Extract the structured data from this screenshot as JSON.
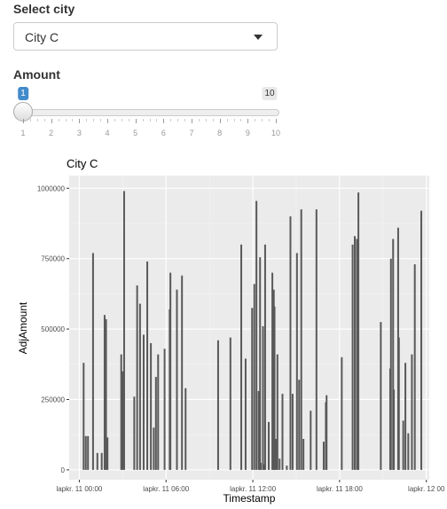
{
  "city_select": {
    "label": "Select city",
    "value": "City C"
  },
  "amount_slider": {
    "label": "Amount",
    "min": 1,
    "max": 10,
    "value": 1,
    "min_label": "1",
    "max_label": "10",
    "value_label": "1",
    "ticks": [
      "1",
      "2",
      "3",
      "4",
      "5",
      "6",
      "7",
      "8",
      "9",
      "10"
    ]
  },
  "chart_data": {
    "type": "bar",
    "title": "City C",
    "xlabel": "Timestamp",
    "ylabel": "AdjAmount",
    "xlim_hours": [
      -0.7,
      24.2
    ],
    "ylim": [
      -35000,
      1045000
    ],
    "y_ticks": [
      {
        "value": 0,
        "label": "0"
      },
      {
        "value": 250000,
        "label": "250000"
      },
      {
        "value": 500000,
        "label": "500000"
      },
      {
        "value": 750000,
        "label": "750000"
      },
      {
        "value": 1000000,
        "label": "1000000"
      }
    ],
    "x_ticks": [
      {
        "value": 0,
        "label": "lapkr. 11 00:00"
      },
      {
        "value": 6,
        "label": "lapkr. 11 06:00"
      },
      {
        "value": 12,
        "label": "lapkr. 11 12:00"
      },
      {
        "value": 18,
        "label": "lapkr. 11 18:00"
      },
      {
        "value": 24,
        "label": "lapkr. 12 00"
      }
    ],
    "grid": true,
    "bar_color": "#595959",
    "panel_color": "#ebebeb",
    "x_unit": "hours after lapkr. 11 00:00",
    "points": [
      [
        0.3,
        380000
      ],
      [
        0.45,
        120000
      ],
      [
        0.6,
        120000
      ],
      [
        0.95,
        770000
      ],
      [
        1.25,
        60000
      ],
      [
        1.55,
        60000
      ],
      [
        1.75,
        550000
      ],
      [
        1.85,
        535000
      ],
      [
        1.95,
        115000
      ],
      [
        2.9,
        410000
      ],
      [
        3.0,
        350000
      ],
      [
        3.1,
        990000
      ],
      [
        3.8,
        260000
      ],
      [
        4.0,
        655000
      ],
      [
        4.2,
        590000
      ],
      [
        4.45,
        480000
      ],
      [
        4.7,
        740000
      ],
      [
        4.95,
        450000
      ],
      [
        5.15,
        150000
      ],
      [
        5.3,
        330000
      ],
      [
        5.45,
        410000
      ],
      [
        5.9,
        430000
      ],
      [
        6.25,
        570000
      ],
      [
        6.3,
        700000
      ],
      [
        6.75,
        640000
      ],
      [
        7.1,
        690000
      ],
      [
        7.35,
        290000
      ],
      [
        9.6,
        460000
      ],
      [
        10.45,
        470000
      ],
      [
        11.2,
        800000
      ],
      [
        11.5,
        395000
      ],
      [
        11.95,
        575000
      ],
      [
        12.1,
        660000
      ],
      [
        12.25,
        955000
      ],
      [
        12.4,
        280000
      ],
      [
        12.5,
        755000
      ],
      [
        12.55,
        25000
      ],
      [
        12.7,
        510000
      ],
      [
        12.75,
        20000
      ],
      [
        12.85,
        800000
      ],
      [
        13.1,
        170000
      ],
      [
        13.35,
        700000
      ],
      [
        13.45,
        640000
      ],
      [
        13.5,
        580000
      ],
      [
        13.6,
        110000
      ],
      [
        13.7,
        410000
      ],
      [
        13.85,
        40000
      ],
      [
        14.05,
        270000
      ],
      [
        14.35,
        15000
      ],
      [
        14.6,
        900000
      ],
      [
        14.75,
        270000
      ],
      [
        15.05,
        770000
      ],
      [
        15.2,
        320000
      ],
      [
        15.35,
        925000
      ],
      [
        15.5,
        110000
      ],
      [
        16.0,
        210000
      ],
      [
        16.4,
        925000
      ],
      [
        16.9,
        100000
      ],
      [
        17.05,
        240000
      ],
      [
        17.1,
        265000
      ],
      [
        18.15,
        400000
      ],
      [
        18.9,
        800000
      ],
      [
        19.05,
        830000
      ],
      [
        19.2,
        820000
      ],
      [
        19.3,
        985000
      ],
      [
        20.85,
        525000
      ],
      [
        21.5,
        360000
      ],
      [
        21.55,
        750000
      ],
      [
        21.7,
        820000
      ],
      [
        21.75,
        285000
      ],
      [
        22.05,
        860000
      ],
      [
        22.1,
        470000
      ],
      [
        22.4,
        175000
      ],
      [
        22.55,
        380000
      ],
      [
        22.75,
        130000
      ],
      [
        23.0,
        410000
      ],
      [
        23.2,
        730000
      ],
      [
        23.65,
        920000
      ]
    ]
  }
}
